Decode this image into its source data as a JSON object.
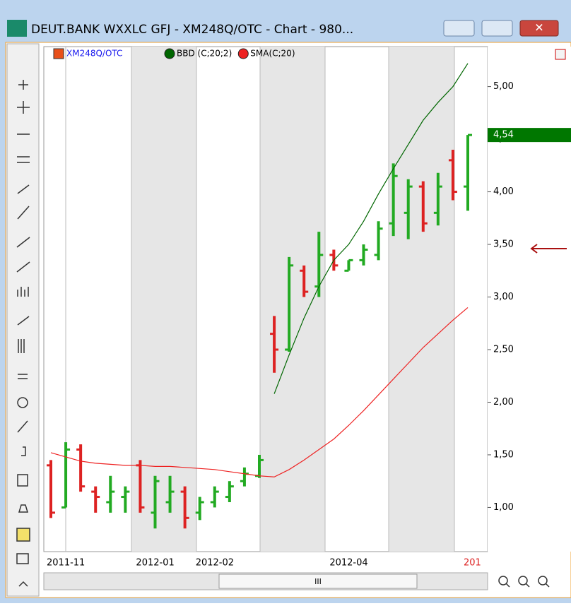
{
  "window": {
    "title": "DEUT.BANK WXXLC GFJ - XM248Q/OTC - Chart - 980...",
    "scroll_label": "III"
  },
  "chart_data": {
    "type": "ohlc",
    "categories": [
      "2011-11",
      null,
      null,
      null,
      null,
      null,
      "2012-01",
      null,
      null,
      null,
      "2012-02",
      null,
      null,
      null,
      null,
      null,
      null,
      null,
      null,
      "2012-04",
      null,
      null,
      null,
      null,
      null,
      null,
      null,
      null,
      "201"
    ],
    "series": [
      {
        "name": "XM248Q/OTC",
        "color": "#e8501a",
        "up_color": "#22aa22",
        "down_color": "#dd2222",
        "open": [
          1.4,
          1.0,
          1.55,
          1.15,
          1.05,
          1.1,
          1.4,
          0.95,
          1.05,
          1.15,
          0.95,
          1.05,
          1.1,
          1.25,
          1.3,
          2.65,
          2.5,
          3.25,
          3.1,
          3.4,
          3.25,
          3.35,
          3.4,
          3.7,
          3.8,
          4.05,
          3.8,
          4.3,
          4.05
        ],
        "high": [
          1.45,
          1.62,
          1.6,
          1.2,
          1.3,
          1.2,
          1.45,
          1.3,
          1.3,
          1.2,
          1.1,
          1.2,
          1.25,
          1.38,
          1.5,
          2.82,
          3.38,
          3.3,
          3.62,
          3.45,
          3.35,
          3.5,
          3.72,
          4.27,
          4.12,
          4.1,
          4.18,
          4.4,
          4.54
        ],
        "low": [
          0.9,
          1.0,
          1.15,
          0.95,
          0.95,
          0.95,
          0.95,
          0.8,
          0.95,
          0.8,
          0.88,
          1.0,
          1.05,
          1.2,
          1.28,
          2.28,
          2.48,
          3.0,
          3.0,
          3.25,
          3.25,
          3.3,
          3.35,
          3.58,
          3.55,
          3.62,
          3.68,
          3.92,
          3.82
        ],
        "close": [
          0.95,
          1.55,
          1.2,
          1.1,
          1.15,
          1.15,
          1.0,
          1.25,
          1.15,
          0.9,
          1.05,
          1.15,
          1.2,
          1.32,
          1.45,
          2.5,
          3.3,
          3.05,
          3.4,
          3.3,
          3.35,
          3.45,
          3.65,
          4.15,
          4.05,
          3.7,
          4.05,
          4.0,
          4.54
        ]
      }
    ],
    "lines": [
      {
        "name": "BBD (C;20;2)",
        "color": "#006600",
        "values": [
          null,
          null,
          null,
          null,
          null,
          null,
          null,
          null,
          null,
          null,
          null,
          null,
          null,
          null,
          null,
          2.08,
          2.45,
          2.8,
          3.1,
          3.35,
          3.5,
          3.72,
          3.98,
          4.22,
          4.45,
          4.68,
          4.85,
          5.0,
          5.22
        ]
      },
      {
        "name": "SMA(C;20)",
        "color": "#ee2222",
        "values": [
          1.52,
          1.48,
          1.44,
          1.42,
          1.41,
          1.4,
          1.4,
          1.39,
          1.39,
          1.38,
          1.37,
          1.36,
          1.34,
          1.32,
          1.3,
          1.29,
          1.36,
          1.45,
          1.55,
          1.65,
          1.78,
          1.92,
          2.07,
          2.22,
          2.37,
          2.52,
          2.65,
          2.78,
          2.9
        ]
      }
    ],
    "ylim": [
      0.58,
      5.38
    ],
    "yticks": [
      {
        "value": 1,
        "label": "1,00"
      },
      {
        "value": 1.5,
        "label": "1,50"
      },
      {
        "value": 2,
        "label": "2,00"
      },
      {
        "value": 2.5,
        "label": "2,50"
      },
      {
        "value": 3,
        "label": "3,00"
      },
      {
        "value": 3.5,
        "label": "3,50"
      },
      {
        "value": 4,
        "label": "4,00"
      },
      {
        "value": 4.5,
        "label": "4,50"
      },
      {
        "value": 5,
        "label": "5,00"
      }
    ],
    "last_price": {
      "value": 4.54,
      "label": "4,54",
      "color": "#007700"
    }
  }
}
